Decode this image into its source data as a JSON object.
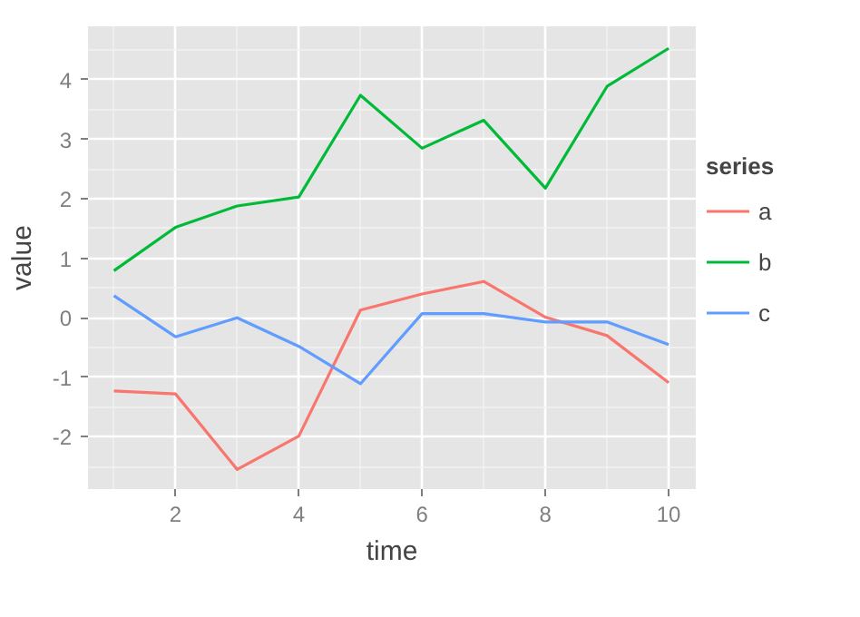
{
  "chart_data": {
    "type": "line",
    "xlabel": "time",
    "ylabel": "value",
    "legend_title": "series",
    "x": [
      1,
      2,
      3,
      4,
      5,
      6,
      7,
      8,
      9,
      10
    ],
    "series": [
      {
        "name": "a",
        "color": "#f8766d",
        "values": [
          -1.23,
          -1.28,
          -2.55,
          -1.99,
          0.13,
          0.4,
          0.61,
          0.01,
          -0.3,
          -1.09
        ]
      },
      {
        "name": "b",
        "color": "#00ba38",
        "values": [
          0.79,
          1.52,
          1.88,
          2.03,
          3.74,
          2.85,
          3.32,
          2.18,
          3.89,
          4.53
        ]
      },
      {
        "name": "c",
        "color": "#619cff",
        "values": [
          0.37,
          -0.32,
          0.0,
          -0.48,
          -1.11,
          0.07,
          0.07,
          -0.07,
          -0.07,
          -0.45
        ]
      }
    ],
    "xlim": [
      0.58,
      10.44
    ],
    "ylim": [
      -2.88,
      4.9
    ],
    "xticks": [
      2,
      4,
      6,
      8,
      10
    ],
    "yticks": [
      -2,
      -1,
      0,
      1,
      2,
      3,
      4
    ],
    "grid": true,
    "legend": "right",
    "marker": "none",
    "line_style": "solid"
  }
}
